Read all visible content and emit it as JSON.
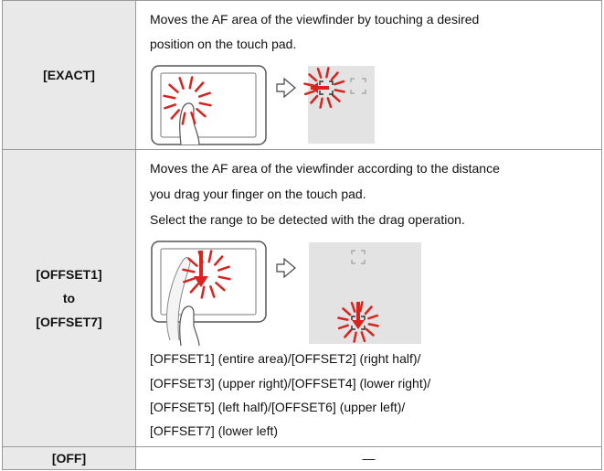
{
  "table": {
    "rows": [
      {
        "label": [
          "[EXACT]"
        ],
        "text": [
          "Moves the AF area of the viewfinder by touching a desired",
          "position on the touch pad."
        ],
        "notes": []
      },
      {
        "label": [
          "[OFFSET1]",
          "to",
          "[OFFSET7]"
        ],
        "text": [
          "Moves the AF area of the viewfinder according to the distance",
          "you drag your finger on the touch pad.",
          "Select the range to be detected with the drag operation."
        ],
        "notes": [
          "[OFFSET1] (entire area)/[OFFSET2] (right half)/",
          "[OFFSET3] (upper right)/[OFFSET4] (lower right)/",
          "[OFFSET5] (left half)/[OFFSET6] (upper left)/",
          "[OFFSET7] (lower left)"
        ]
      },
      {
        "label": [
          "[OFF]"
        ],
        "text": [
          "—"
        ],
        "notes": []
      }
    ]
  }
}
